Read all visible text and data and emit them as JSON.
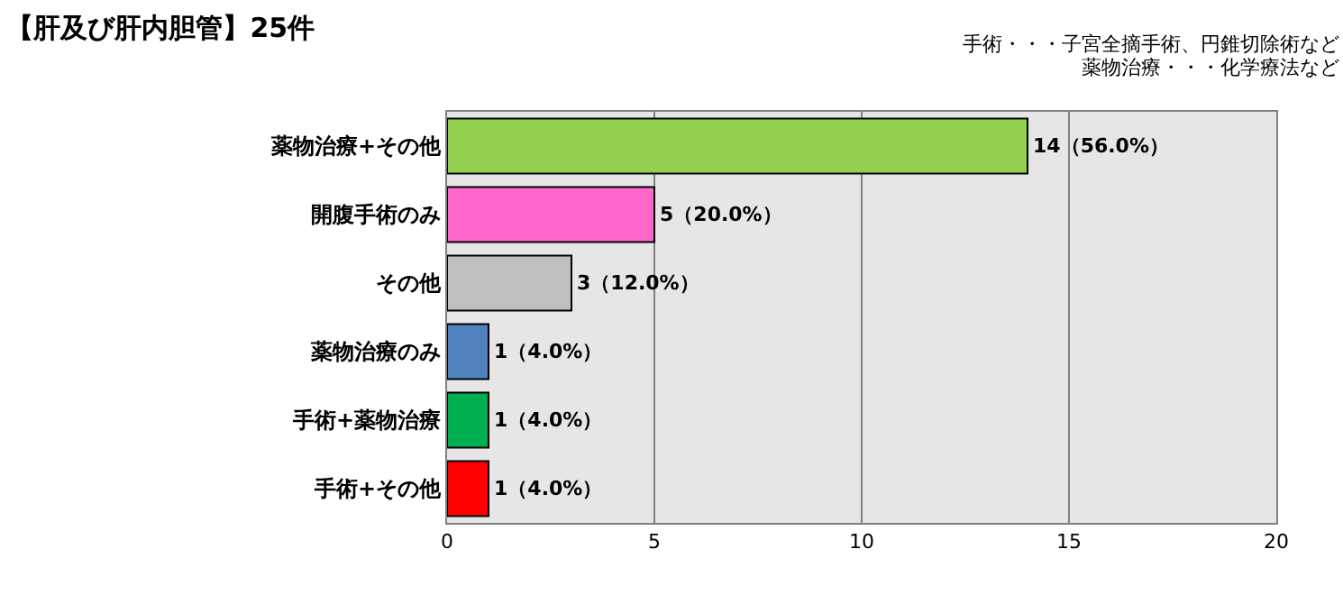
{
  "chart_data": {
    "type": "bar",
    "orientation": "horizontal",
    "title": "【肝及び肝内胆管】25件",
    "annotations": [
      "手術・・・子宮全摘手術、円錐切除術など",
      "薬物治療・・・化学療法など"
    ],
    "categories": [
      "薬物治療+その他",
      "開腹手術のみ",
      "その他",
      "薬物治療のみ",
      "手術+薬物治療",
      "手術+その他"
    ],
    "values": [
      14,
      5,
      3,
      1,
      1,
      1
    ],
    "colors": [
      "#92d050",
      "#ff66cc",
      "#bfbfbf",
      "#4f81bd",
      "#00b050",
      "#ff0000"
    ],
    "value_labels": [
      "14（56.0%）",
      "5（20.0%）",
      "3（12.0%）",
      "1（4.0%）",
      "1（4.0%）",
      "1（4.0%）"
    ],
    "xlim": [
      0,
      20
    ],
    "xticks": [
      0,
      5,
      10,
      15,
      20
    ],
    "grid": "x"
  }
}
